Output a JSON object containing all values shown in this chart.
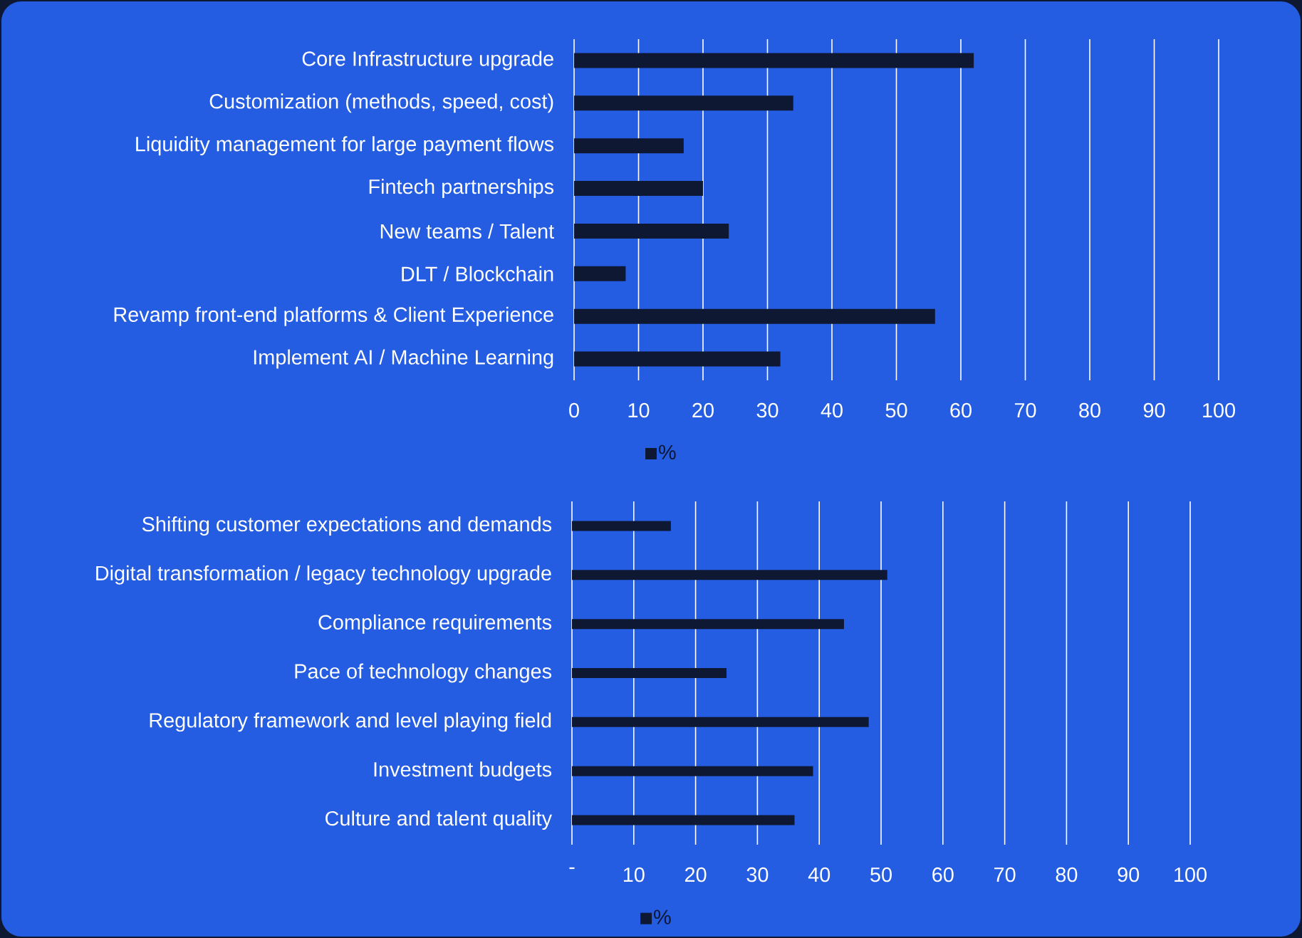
{
  "chart_data": [
    {
      "type": "bar",
      "orientation": "horizontal",
      "categories": [
        "Core Infrastructure upgrade",
        "Customization (methods, speed, cost)",
        "Liquidity management for large payment flows",
        "Fintech partnerships",
        "New teams / Talent",
        "DLT / Blockchain",
        "Revamp front-end platforms & Client Experience",
        "Implement AI / Machine Learning"
      ],
      "series": [
        {
          "name": "%",
          "color": "#0f1833",
          "values": [
            62,
            34,
            17,
            20,
            24,
            8,
            56,
            32
          ]
        }
      ],
      "xlim": [
        0,
        100
      ],
      "xticks": [
        0,
        10,
        20,
        30,
        40,
        50,
        60,
        70,
        80,
        90,
        100
      ],
      "grid": "x",
      "legend": "bottom"
    },
    {
      "type": "bar",
      "orientation": "horizontal",
      "categories": [
        "Shifting customer expectations and demands",
        "Digital transformation / legacy technology upgrade",
        "Compliance requirements",
        "Pace of technology changes",
        "Regulatory framework and level playing field",
        "Investment budgets",
        "Culture and talent quality"
      ],
      "series": [
        {
          "name": "%",
          "color": "#0f1833",
          "values": [
            16,
            51,
            44,
            25,
            48,
            39,
            36
          ]
        }
      ],
      "xlim": [
        0,
        100
      ],
      "xticks": [
        {
          "value": 0,
          "label": "-"
        },
        10,
        20,
        30,
        40,
        50,
        60,
        70,
        80,
        90,
        100
      ],
      "grid": "x",
      "legend": "bottom"
    }
  ]
}
